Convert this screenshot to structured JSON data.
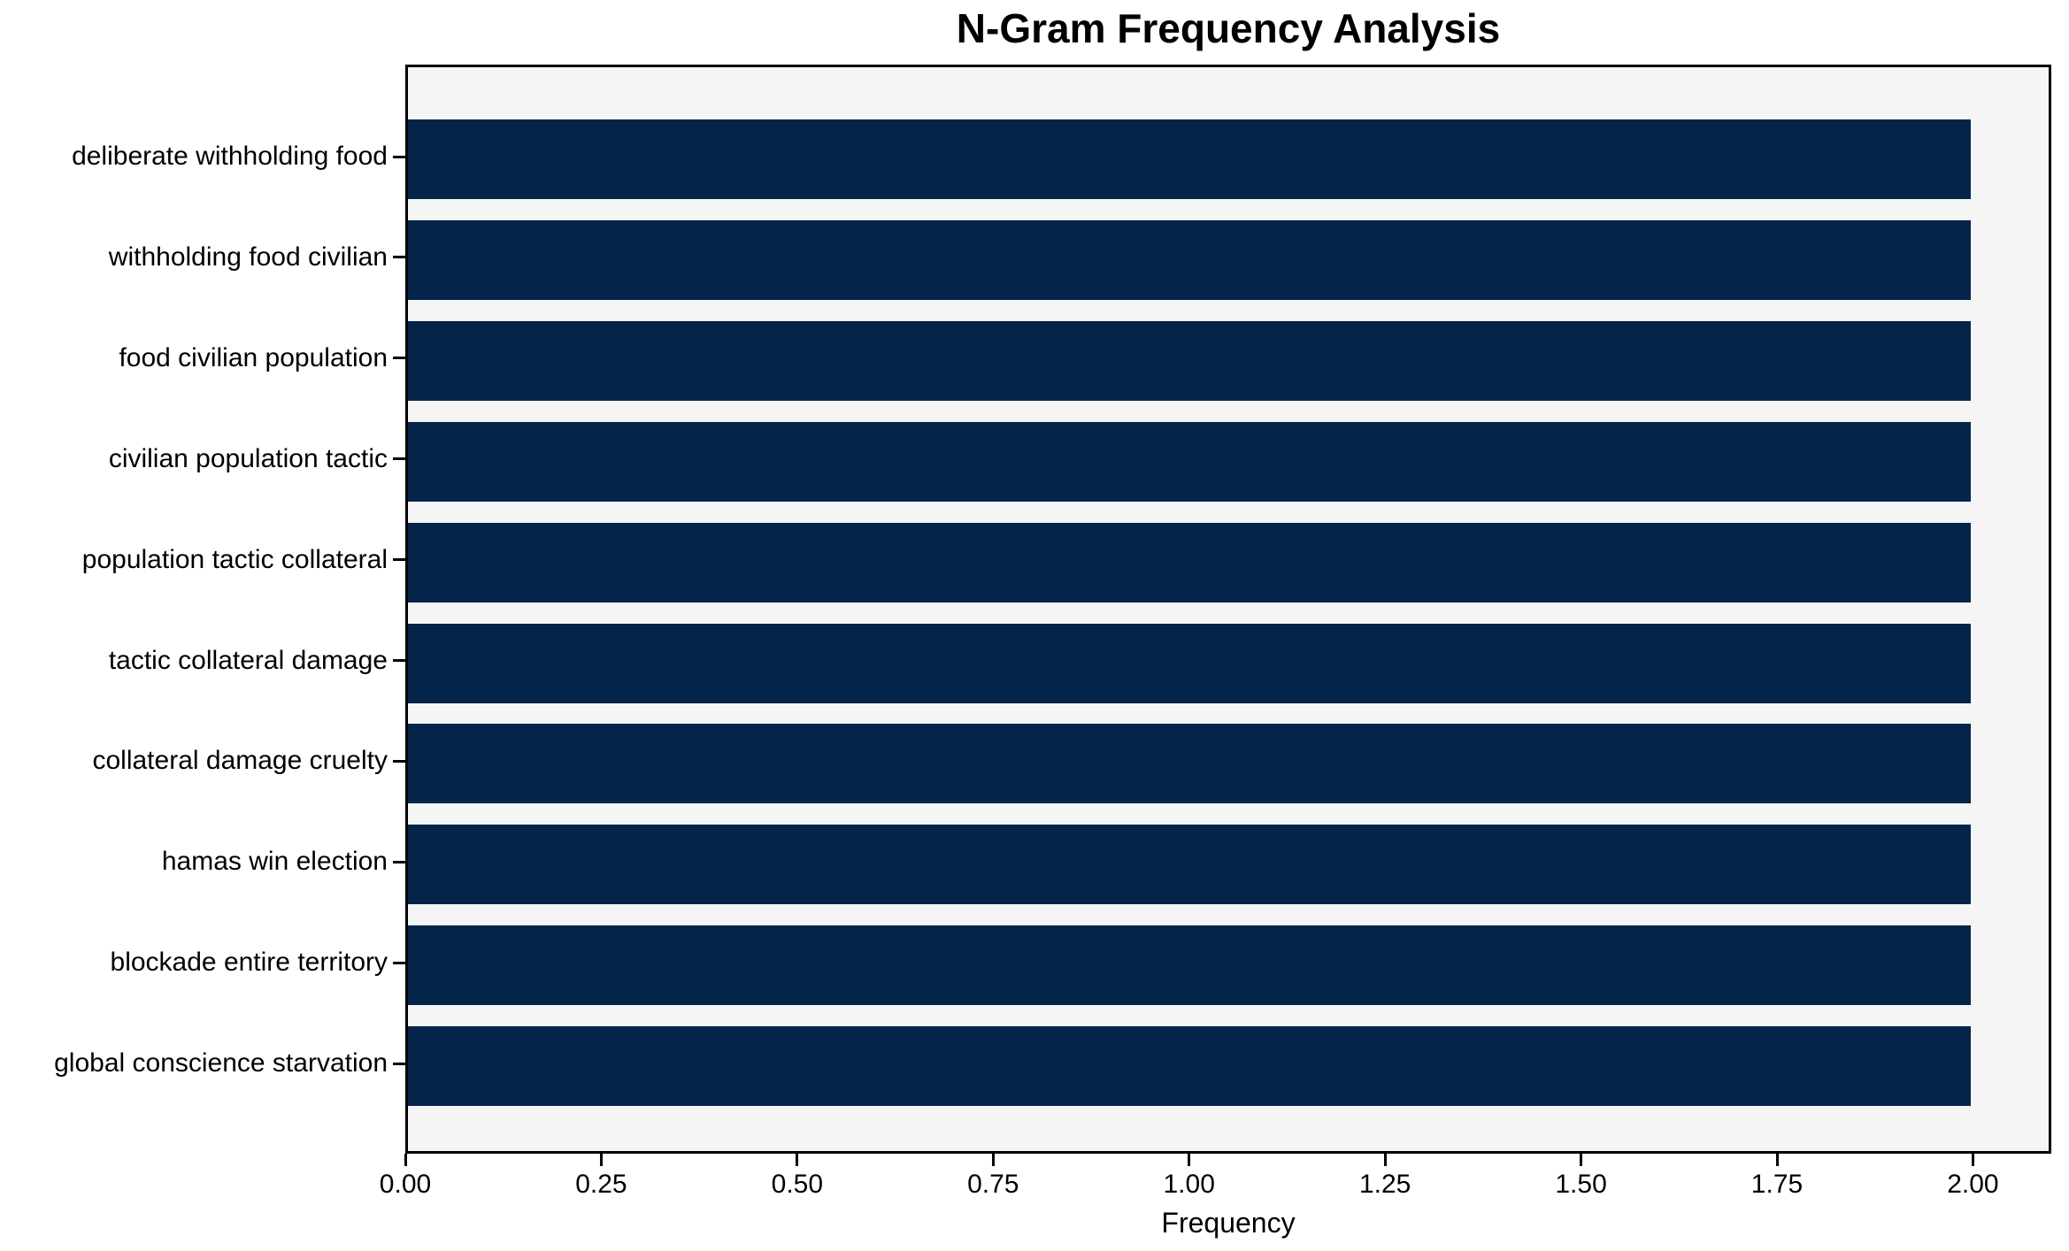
{
  "chart_data": {
    "type": "bar",
    "orientation": "horizontal",
    "title": "N-Gram Frequency Analysis",
    "xlabel": "Frequency",
    "ylabel": "",
    "categories": [
      "deliberate withholding food",
      "withholding food civilian",
      "food civilian population",
      "civilian population tactic",
      "population tactic collateral",
      "tactic collateral damage",
      "collateral damage cruelty",
      "hamas win election",
      "blockade entire territory",
      "global conscience starvation"
    ],
    "values": [
      2,
      2,
      2,
      2,
      2,
      2,
      2,
      2,
      2,
      2
    ],
    "xlim": [
      0,
      2.1
    ],
    "xtick_values": [
      0.0,
      0.25,
      0.5,
      0.75,
      1.0,
      1.25,
      1.5,
      1.75,
      2.0
    ],
    "xtick_labels": [
      "0.00",
      "0.25",
      "0.50",
      "0.75",
      "1.00",
      "1.25",
      "1.50",
      "1.75",
      "2.00"
    ],
    "grid": false,
    "legend": null,
    "bar_color": "#052449",
    "plot_background": "#f5f5f5",
    "text_color": "#000000"
  }
}
